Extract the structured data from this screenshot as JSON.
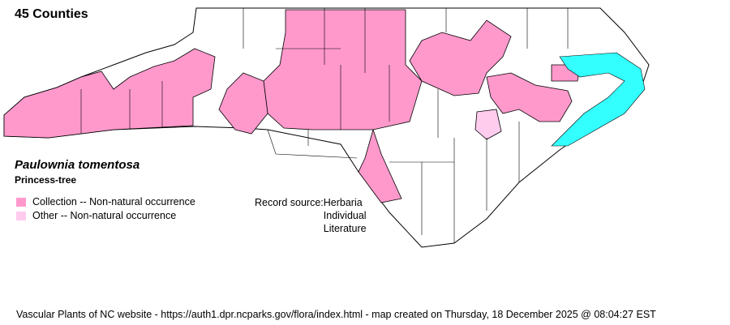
{
  "map": {
    "title": "45 Counties",
    "species_scientific": "Paulownia tomentosa",
    "species_common": "Princess-tree",
    "legend": [
      {
        "label": "Collection -- Non-natural occurrence",
        "color": "#ff99cc"
      },
      {
        "label": "Other -- Non-natural occurrence",
        "color": "#ffccee"
      }
    ],
    "record_source_label": "Record source:",
    "record_sources": [
      "Herbaria",
      "Individual",
      "Literature"
    ],
    "water_color": "#33ffff",
    "county_border_color": "#000000"
  },
  "footer": "Vascular Plants of NC website - https://auth1.dpr.ncparks.gov/flora/index.html - map created on Thursday, 18 December 2025 @ 08:04:27 EST"
}
